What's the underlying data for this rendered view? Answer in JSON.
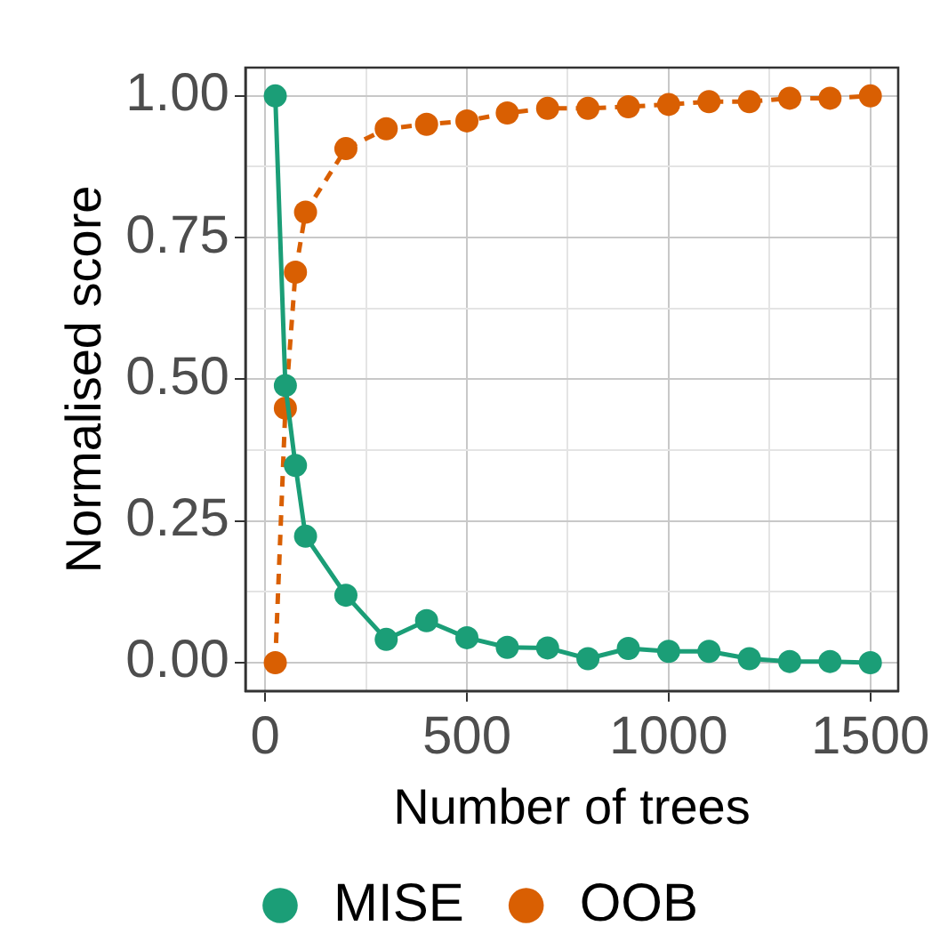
{
  "chart_data": {
    "type": "line",
    "xlabel": "Number of trees",
    "ylabel": "Normalised score",
    "x": [
      25,
      50,
      75,
      100,
      200,
      300,
      400,
      500,
      600,
      700,
      800,
      900,
      1000,
      1100,
      1200,
      1300,
      1400,
      1500
    ],
    "series": [
      {
        "name": "MISE",
        "color": "#1b9e77",
        "line_style": "solid",
        "values": [
          1.0,
          0.489,
          0.348,
          0.223,
          0.119,
          0.041,
          0.074,
          0.044,
          0.027,
          0.026,
          0.007,
          0.025,
          0.02,
          0.02,
          0.007,
          0.002,
          0.002,
          0.0
        ]
      },
      {
        "name": "OOB",
        "color": "#d95f02",
        "line_style": "dashed",
        "values": [
          0.0,
          0.449,
          0.689,
          0.795,
          0.907,
          0.942,
          0.95,
          0.956,
          0.97,
          0.978,
          0.978,
          0.981,
          0.985,
          0.99,
          0.99,
          0.996,
          0.996,
          1.0
        ]
      }
    ],
    "xlim": [
      -49,
      1569
    ],
    "ylim": [
      -0.05,
      1.05
    ],
    "xticks": [
      0,
      {
        "value": 250,
        "label": null
      },
      500,
      {
        "value": 750,
        "label": null
      },
      1000,
      {
        "value": 1250,
        "label": null
      },
      1500
    ],
    "yticks": [
      {
        "value": 0,
        "label": "0.00"
      },
      {
        "value": 0.125,
        "label": null
      },
      {
        "value": 0.25,
        "label": "0.25"
      },
      {
        "value": 0.375,
        "label": null
      },
      {
        "value": 0.5,
        "label": "0.50"
      },
      {
        "value": 0.625,
        "label": null
      },
      {
        "value": 0.75,
        "label": "0.75"
      },
      {
        "value": 0.875,
        "label": null
      },
      {
        "value": 1,
        "label": "1.00"
      }
    ],
    "grid": true,
    "legend": "bottom",
    "marker": "circle"
  }
}
